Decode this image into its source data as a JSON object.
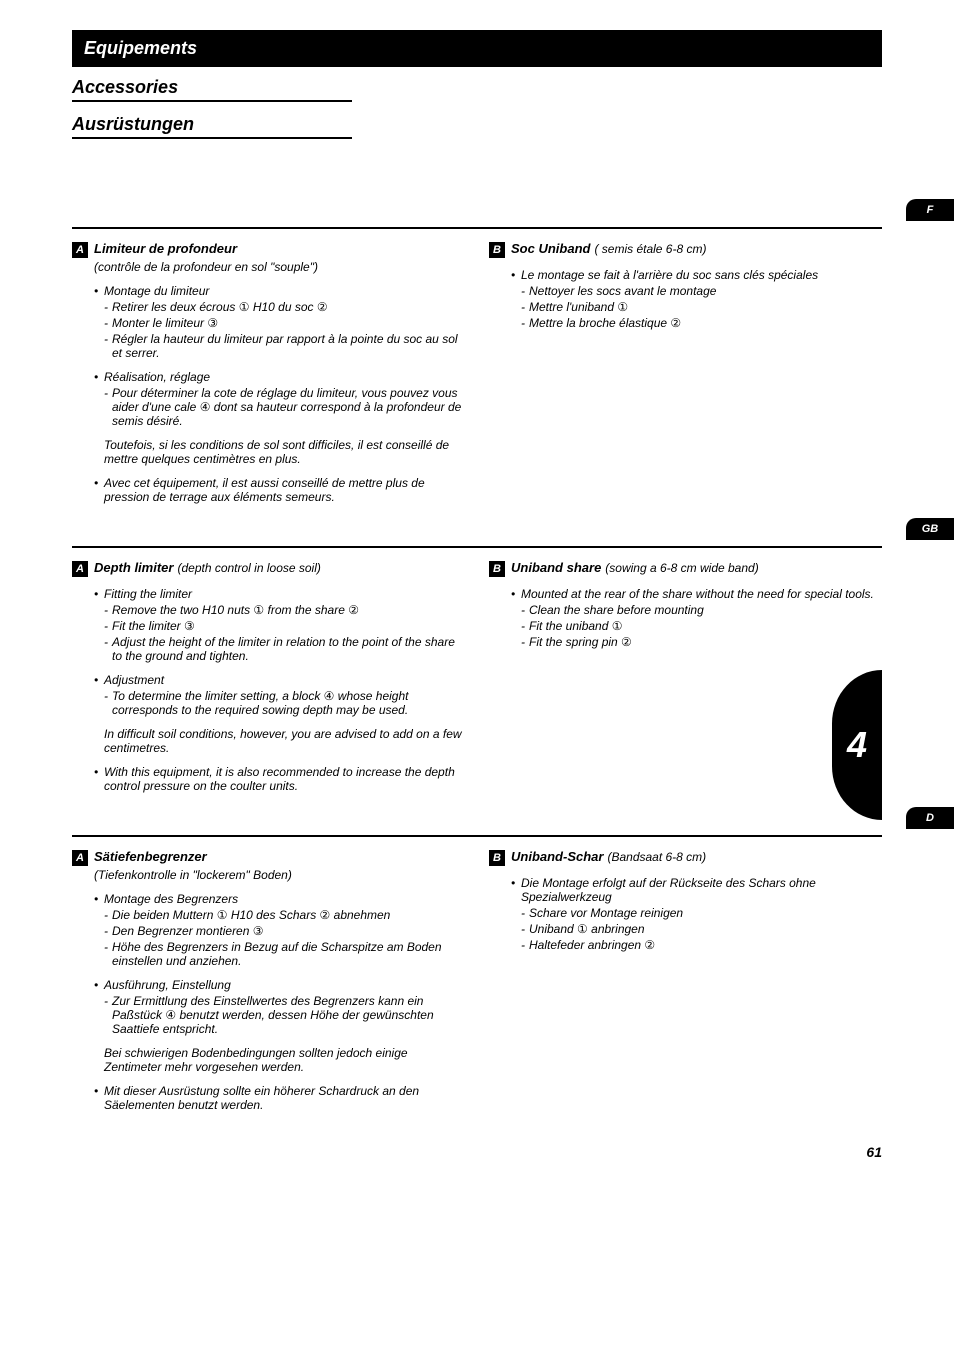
{
  "page_number": "61",
  "chapter_tab": "4",
  "colors": {
    "ink": "#000000",
    "paper": "#ffffff"
  },
  "headings": {
    "fr": "Equipements",
    "en": "Accessories",
    "de": "Ausrüstungen"
  },
  "side_tabs": {
    "fr": "F",
    "en": "GB",
    "de": "D"
  },
  "circ": {
    "1": "①",
    "2": "②",
    "3": "③",
    "4": "④"
  },
  "fr": {
    "A": {
      "title": "Limiteur de profondeur",
      "subtitle": "(contrôle de la profondeur en sol \"souple\")",
      "b1": "Montage du limiteur",
      "b1_l1a": "Retirer les deux écrous ",
      "b1_l1b": " H10 du soc ",
      "b1_l2a": "Monter le limiteur ",
      "b1_l3": "Régler la hauteur du limiteur par rapport à la pointe du soc au sol et serrer.",
      "b2": "Réalisation, réglage",
      "b2_l1a": "Pour déterminer la cote de réglage du limiteur, vous pouvez vous aider d'une cale ",
      "b2_l1b": " dont sa hauteur correspond à la profondeur de semis désiré.",
      "p1": "Toutefois, si les conditions de sol sont difficiles, il est conseillé de mettre quelques centimètres en plus.",
      "b3": "Avec cet équipement, il est aussi conseillé de mettre plus de pression de terrage aux éléments semeurs."
    },
    "B": {
      "title": "Soc Uniband",
      "note": "( semis étale 6-8 cm)",
      "b1": "Le montage se fait à l'arrière du soc sans clés spéciales",
      "l1": "Nettoyer les socs avant le montage",
      "l2a": "Mettre l'uniband ",
      "l3a": "Mettre la broche élastique "
    }
  },
  "en": {
    "A": {
      "title": "Depth limiter",
      "note": "(depth control in loose soil)",
      "b1": "Fitting the limiter",
      "b1_l1a": "Remove the two H10 nuts ",
      "b1_l1b": " from the share ",
      "b1_l2a": "Fit the limiter ",
      "b1_l3": "Adjust the height of the limiter in relation to the point of the share to the ground and tighten.",
      "b2": "Adjustment",
      "b2_l1a": "To determine the limiter setting, a block ",
      "b2_l1b": " whose height corresponds to the required sowing depth may be used.",
      "p1": "In difficult soil conditions, however, you are advised to add on a few centimetres.",
      "b3": "With this equipment, it is also recommended to increase the depth control pressure on the coulter units."
    },
    "B": {
      "title": "Uniband share",
      "note": "(sowing a 6-8 cm wide band)",
      "b1": "Mounted at the rear of the share without the need for special tools.",
      "l1": "Clean the share before mounting",
      "l2a": "Fit the uniband ",
      "l3a": "Fit the spring pin "
    }
  },
  "de": {
    "A": {
      "title": "Sätiefenbegrenzer",
      "subtitle": "(Tiefenkontrolle in \"lockerem\" Boden)",
      "b1": "Montage des Begrenzers",
      "b1_l1a": "Die beiden Muttern ",
      "b1_l1b": " H10 des Schars ",
      "b1_l1c": " abnehmen",
      "b1_l2a": "Den Begrenzer montieren ",
      "b1_l3": "Höhe des Begrenzers in Bezug auf die Scharspitze am Boden einstellen und anziehen.",
      "b2": "Ausführung, Einstellung",
      "b2_l1a": "Zur Ermittlung des Einstellwertes des Begrenzers kann ein Paßstück ",
      "b2_l1b": " benutzt werden, dessen Höhe der gewünschten Saattiefe entspricht.",
      "p1": "Bei schwierigen Bodenbedingungen sollten jedoch einige Zentimeter mehr vorgesehen werden.",
      "b3": "Mit dieser Ausrüstung sollte ein höherer Schardruck an den Säelementen benutzt werden."
    },
    "B": {
      "title": "Uniband-Schar",
      "note": "(Bandsaat 6-8 cm)",
      "b1": "Die Montage erfolgt auf der Rückseite des Schars ohne Spezialwerkzeug",
      "l1": "Schare vor Montage reinigen",
      "l2a": "Uniband ",
      "l2b": " anbringen",
      "l3a": "Haltefeder anbringen "
    }
  }
}
